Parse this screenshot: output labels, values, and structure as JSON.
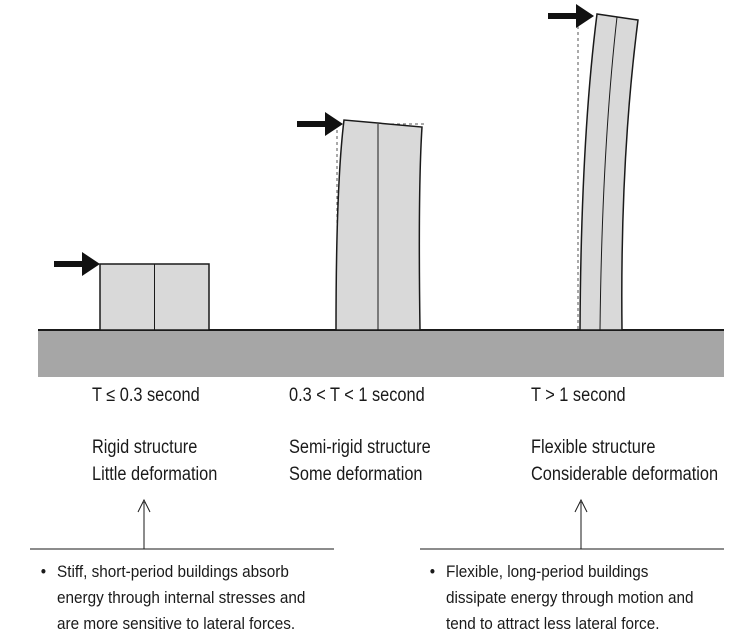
{
  "structures": [
    {
      "period": "T ≤ 0.3 second",
      "type": "Rigid structure",
      "deformation": "Little deformation"
    },
    {
      "period": "0.3 < T < 1 second",
      "type": "Semi-rigid structure",
      "deformation": "Some deformation"
    },
    {
      "period": "T > 1 second",
      "type": "Flexible structure",
      "deformation": "Considerable deformation"
    }
  ],
  "notes": {
    "left": {
      "lines": [
        "Stiff, short-period buildings absorb",
        "energy through internal stresses and",
        "are more sensitive to lateral forces."
      ]
    },
    "right": {
      "lines": [
        "Flexible, long-period buildings",
        "dissipate energy through motion and",
        "tend to attract less lateral force."
      ]
    }
  },
  "colors": {
    "ground": "#a6a6a6",
    "building_fill": "#d9d9d9",
    "stroke": "#1a1a1a"
  }
}
